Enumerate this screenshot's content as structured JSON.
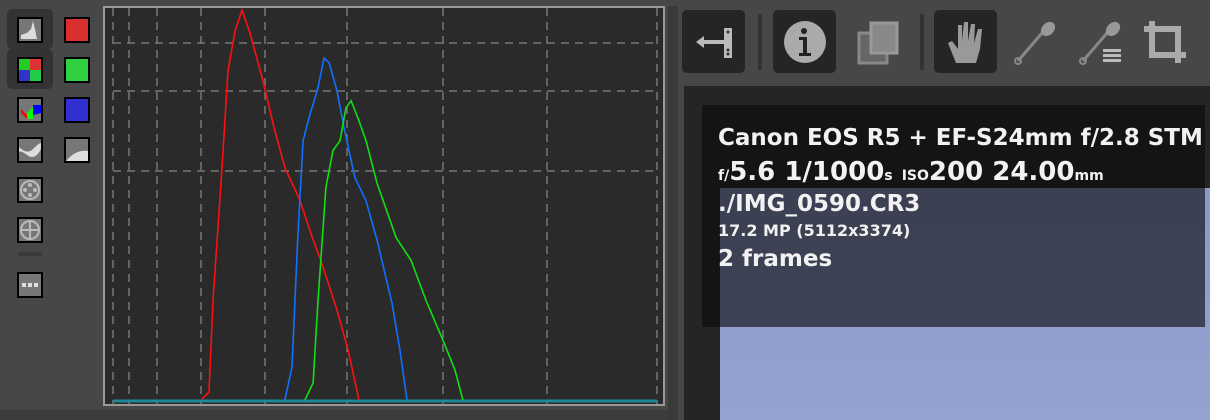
{
  "histogram_tools": {
    "left": [
      "histogram-full-icon",
      "bayer-raw-icon",
      "chroma-waveform-icon",
      "waveform-icon",
      "vectorscope-hc-icon",
      "vectorscope-hs-icon",
      "more-icon"
    ],
    "right": [
      "red-channel-toggle",
      "green-channel-toggle",
      "blue-channel-toggle",
      "luminance-curve-toggle"
    ],
    "colors": {
      "red": "#d83030",
      "green": "#30d040",
      "blue": "#3030d0"
    }
  },
  "toolbar": [
    "hide-panel-icon",
    "info-icon",
    "before-after-icon",
    "hand-icon",
    "color-picker-icon",
    "color-picker-list-icon",
    "crop-icon"
  ],
  "chart_data": {
    "type": "line",
    "xlim": [
      0,
      255
    ],
    "ylim": [
      0,
      100
    ],
    "grid": true,
    "series": [
      {
        "color": "#ff1010",
        "x": [
          41.7,
          45,
          46.9,
          51.1,
          53.9,
          57.2,
          60.5,
          64.2,
          70.3,
          75.5,
          80.6,
          87.7,
          92.8,
          97.9,
          105,
          110.2,
          115.3
        ],
        "y": [
          0.5,
          2.3,
          25.7,
          59.5,
          84.2,
          94.4,
          99.7,
          93.9,
          81.7,
          69.7,
          59.5,
          51.1,
          42.7,
          35.1,
          23.2,
          13,
          0.3
        ]
      },
      {
        "color": "#1070ff",
        "x": [
          80.6,
          83.9,
          86.7,
          89.1,
          91.9,
          96.1,
          98.9,
          101.3,
          105,
          108.3,
          113.4,
          118.6,
          123.8,
          130.8,
          134.5,
          137.8
        ],
        "y": [
          0.3,
          8.7,
          42.7,
          66.4,
          72.3,
          79.9,
          87.5,
          86.3,
          79.1,
          69.7,
          57,
          51.1,
          41,
          24.9,
          13,
          0.3
        ]
      },
      {
        "color": "#10e010",
        "x": [
          90,
          93.8,
          96.1,
          99.8,
          103.1,
          106.4,
          109.2,
          111.6,
          115.3,
          118.6,
          123.8,
          132.7,
          139.7,
          146.7,
          155.2,
          160.3,
          164
        ],
        "y": [
          0.3,
          4.6,
          25.7,
          54.5,
          63.9,
          66.4,
          74.8,
          76.6,
          71.5,
          66.4,
          55.5,
          41.7,
          35.9,
          25.7,
          14.8,
          7.9,
          0.3
        ]
      }
    ]
  },
  "info": {
    "camera": "Canon EOS R5 + EF-S24mm f/2.8 STM",
    "f_prefix": "f/",
    "aperture": "5.6",
    "shutter": "1/1000",
    "shutter_unit": "s",
    "iso_prefix": "ISO",
    "iso": "200",
    "focal": "24.00",
    "focal_unit": "mm",
    "filename": "./IMG_0590.CR3",
    "resolution": "17.2 MP (5112x3374)",
    "frames": "2 frames"
  }
}
